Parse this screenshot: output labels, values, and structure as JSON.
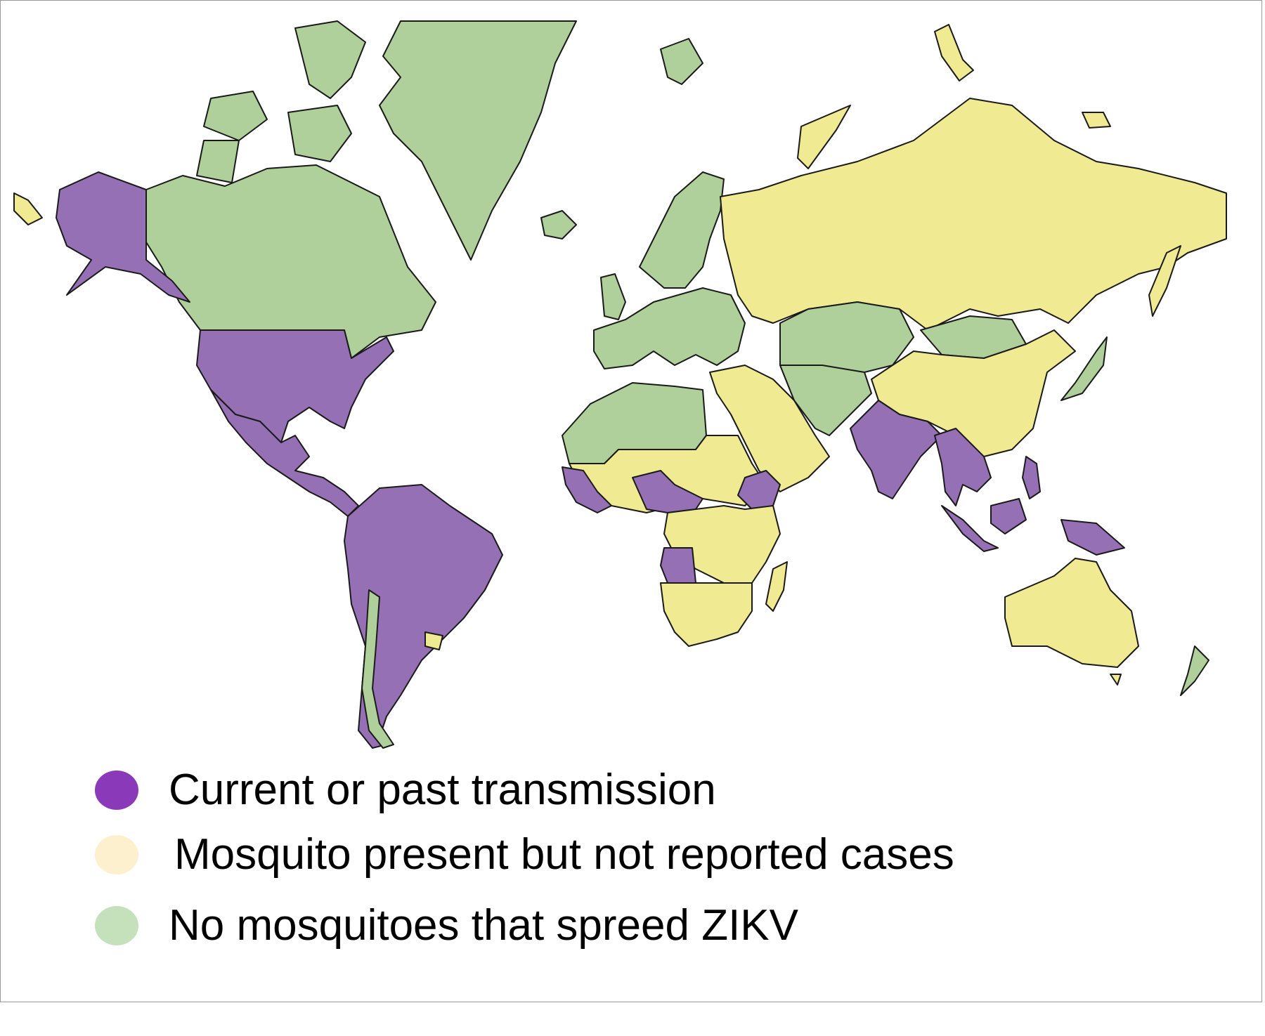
{
  "legend": {
    "items": [
      {
        "label": "Current or past transmission",
        "color": "#8a3ab9"
      },
      {
        "label": "Mosquito present but not reported cases",
        "color": "#fdf0cf"
      },
      {
        "label": "No mosquitoes that spreed ZIKV",
        "color": "#c5e1bc"
      }
    ]
  },
  "map_colors": {
    "transmission": "#9670b4",
    "mosquito_present": "#f0ea92",
    "no_mosquito": "#b0d09b",
    "border": "#1a1a1a"
  }
}
